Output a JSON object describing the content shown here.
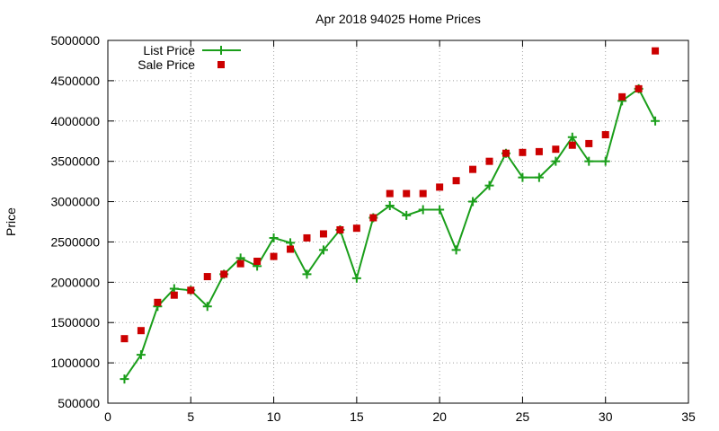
{
  "chart_data": {
    "type": "line",
    "title": "Apr 2018 94025 Home Prices",
    "xlabel": "",
    "ylabel": "Price",
    "xlim": [
      0,
      35
    ],
    "ylim": [
      500000,
      5000000
    ],
    "xticks": [
      0,
      5,
      10,
      15,
      20,
      25,
      30,
      35
    ],
    "yticks": [
      500000,
      1000000,
      1500000,
      2000000,
      2500000,
      3000000,
      3500000,
      4000000,
      4500000,
      5000000
    ],
    "grid": true,
    "legend_position": "top-left",
    "series": [
      {
        "name": "List Price",
        "style": "line-with-plus-markers",
        "color": "#1a9e1a",
        "x": [
          1,
          2,
          3,
          4,
          5,
          6,
          7,
          8,
          9,
          10,
          11,
          12,
          13,
          14,
          15,
          16,
          17,
          18,
          19,
          20,
          21,
          22,
          23,
          24,
          25,
          26,
          27,
          28,
          29,
          30,
          31,
          32,
          33
        ],
        "y": [
          800000,
          1100000,
          1700000,
          1920000,
          1900000,
          1700000,
          2100000,
          2300000,
          2200000,
          2550000,
          2490000,
          2100000,
          2400000,
          2650000,
          2050000,
          2800000,
          2950000,
          2830000,
          2900000,
          2900000,
          2400000,
          3000000,
          3200000,
          3600000,
          3300000,
          3300000,
          3500000,
          3800000,
          3500000,
          3500000,
          4250000,
          4400000,
          4000000
        ]
      },
      {
        "name": "Sale Price",
        "style": "square-markers",
        "color": "#cc0000",
        "x": [
          1,
          2,
          3,
          4,
          5,
          6,
          7,
          8,
          9,
          10,
          11,
          12,
          13,
          14,
          15,
          16,
          17,
          18,
          19,
          20,
          21,
          22,
          23,
          24,
          25,
          26,
          27,
          28,
          29,
          30,
          31,
          32,
          33
        ],
        "y": [
          1300000,
          1400000,
          1750000,
          1840000,
          1900000,
          2070000,
          2100000,
          2230000,
          2260000,
          2320000,
          2410000,
          2550000,
          2600000,
          2650000,
          2670000,
          2800000,
          3100000,
          3100000,
          3100000,
          3180000,
          3260000,
          3400000,
          3500000,
          3600000,
          3610000,
          3620000,
          3650000,
          3700000,
          3720000,
          3830000,
          4300000,
          4400000,
          4870000
        ]
      }
    ]
  }
}
